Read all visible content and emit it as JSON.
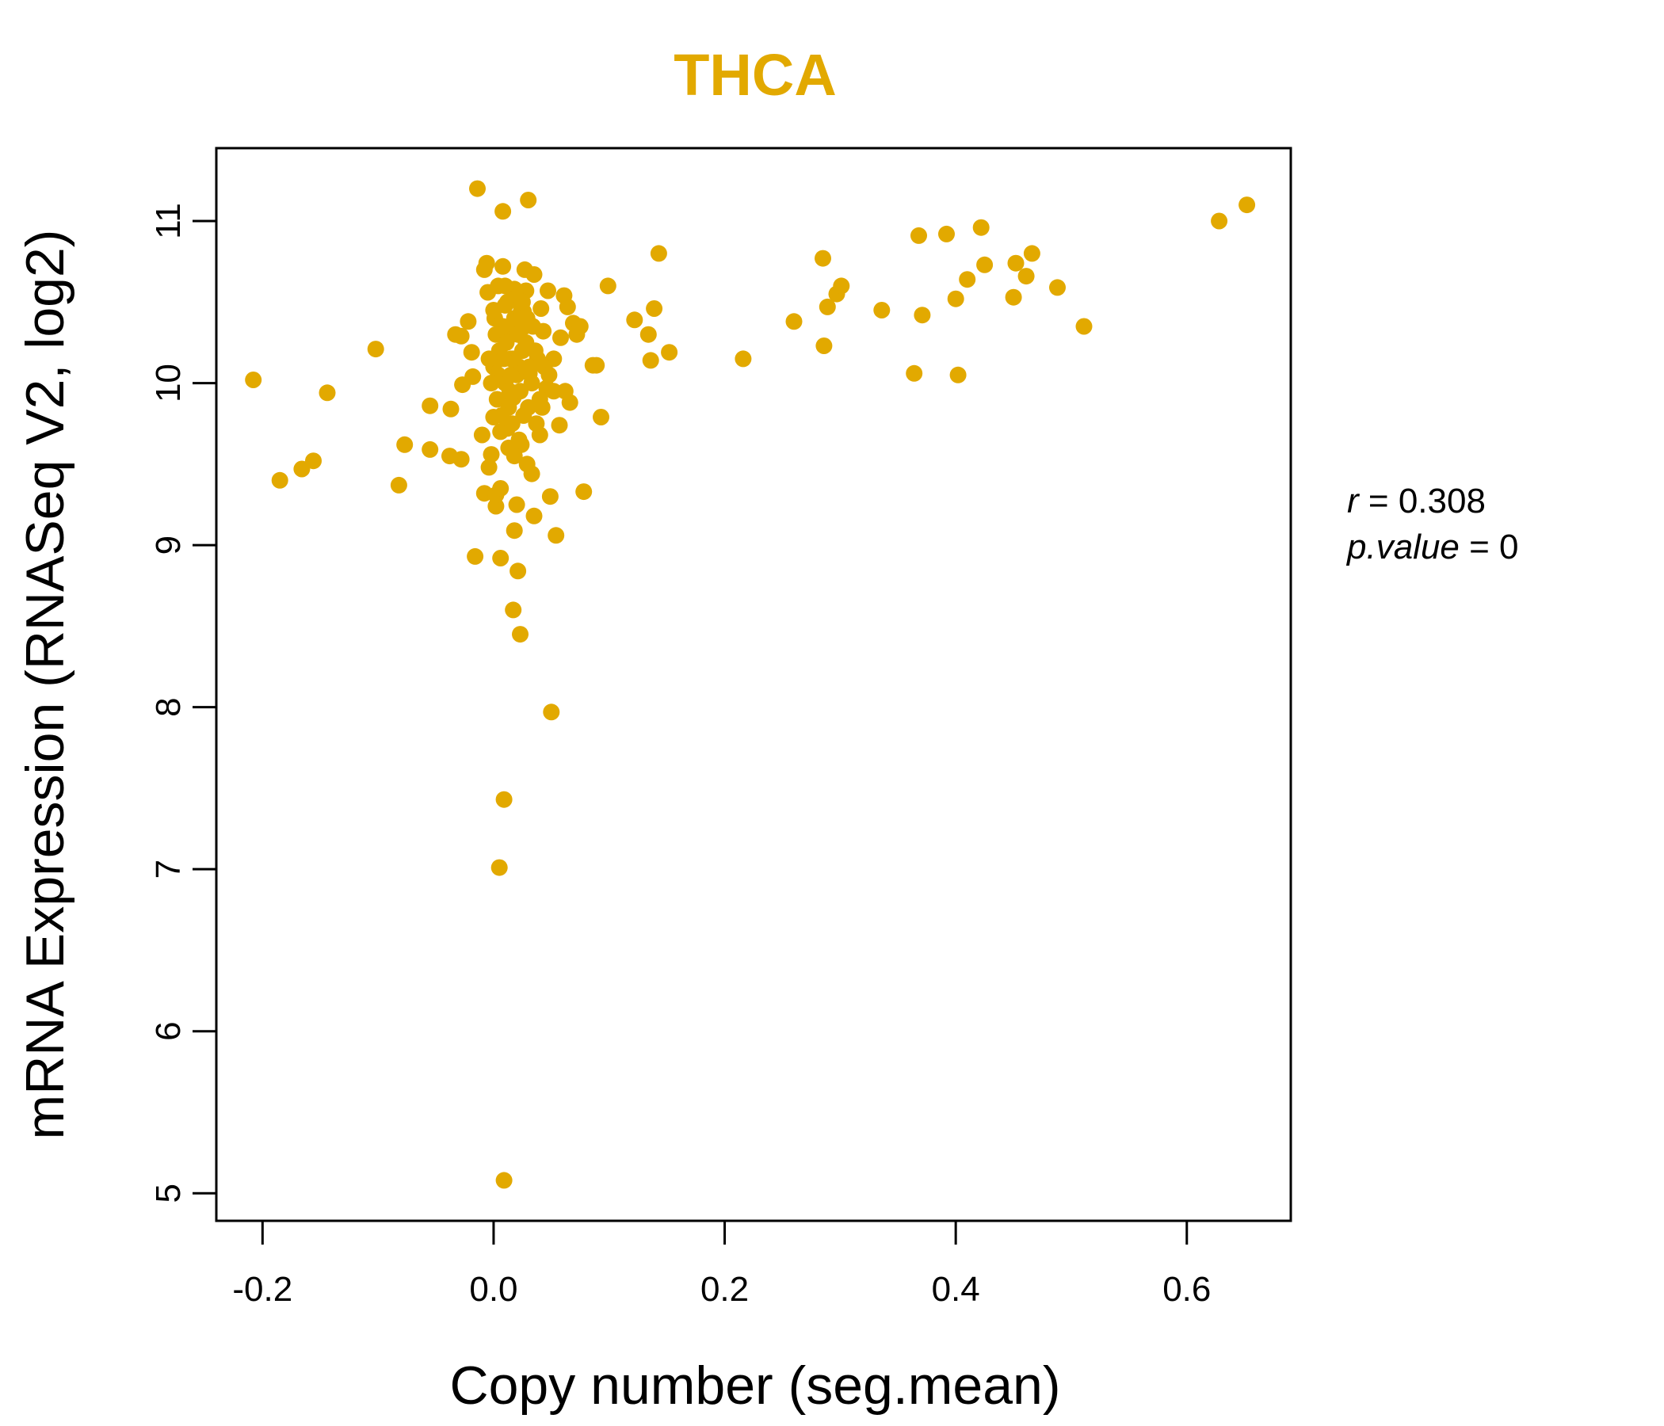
{
  "chart_data": {
    "type": "scatter",
    "title": "THCA",
    "xlabel": "Copy number (seg.mean)",
    "ylabel": "mRNA Expression (RNASeq V2, log2)",
    "xlim": [
      -0.24,
      0.69
    ],
    "ylim": [
      4.83,
      11.45
    ],
    "x_ticks": [
      -0.2,
      0.0,
      0.2,
      0.4,
      0.6
    ],
    "x_tick_labels": [
      "-0.2",
      "0.0",
      "0.2",
      "0.4",
      "0.6"
    ],
    "y_ticks": [
      5,
      6,
      7,
      8,
      9,
      10,
      11
    ],
    "y_tick_labels": [
      "5",
      "6",
      "7",
      "8",
      "9",
      "10",
      "11"
    ],
    "stats": {
      "r_label": "r",
      "r_value": "0.308",
      "p_label": "p.value",
      "p_value": "0"
    },
    "series": [
      {
        "name": "samples",
        "points": [
          [
            -0.208,
            10.02
          ],
          [
            -0.185,
            9.4
          ],
          [
            -0.166,
            9.47
          ],
          [
            -0.156,
            9.52
          ],
          [
            -0.144,
            9.94
          ],
          [
            -0.102,
            10.21
          ],
          [
            -0.082,
            9.37
          ],
          [
            -0.077,
            9.62
          ],
          [
            -0.055,
            9.86
          ],
          [
            -0.055,
            9.59
          ],
          [
            -0.037,
            9.84
          ],
          [
            -0.038,
            9.55
          ],
          [
            -0.033,
            10.3
          ],
          [
            -0.028,
            10.29
          ],
          [
            -0.028,
            9.53
          ],
          [
            -0.027,
            9.99
          ],
          [
            -0.022,
            10.38
          ],
          [
            -0.019,
            10.19
          ],
          [
            -0.018,
            10.04
          ],
          [
            -0.016,
            8.93
          ],
          [
            -0.014,
            11.2
          ],
          [
            -0.01,
            9.68
          ],
          [
            -0.008,
            9.32
          ],
          [
            -0.008,
            10.7
          ],
          [
            -0.006,
            10.74
          ],
          [
            -0.005,
            10.56
          ],
          [
            -0.004,
            9.48
          ],
          [
            -0.002,
            9.56
          ],
          [
            0.0,
            9.79
          ],
          [
            0.002,
            9.24
          ],
          [
            0.002,
            9.31
          ],
          [
            0.004,
            10.6
          ],
          [
            0.006,
            9.35
          ],
          [
            0.006,
            8.92
          ],
          [
            0.008,
            11.06
          ],
          [
            0.008,
            10.72
          ],
          [
            0.01,
            10.48
          ],
          [
            0.012,
            9.72
          ],
          [
            0.015,
            10.15
          ],
          [
            0.016,
            10.31
          ],
          [
            0.017,
            9.91
          ],
          [
            0.018,
            9.09
          ],
          [
            0.018,
            10.58
          ],
          [
            0.02,
            9.25
          ],
          [
            0.021,
            8.84
          ],
          [
            0.023,
            8.45
          ],
          [
            0.024,
            9.62
          ],
          [
            0.026,
            10.44
          ],
          [
            0.027,
            10.7
          ],
          [
            0.028,
            10.57
          ],
          [
            0.029,
            9.5
          ],
          [
            0.03,
            11.13
          ],
          [
            0.031,
            10.06
          ],
          [
            0.033,
            9.44
          ],
          [
            0.035,
            10.67
          ],
          [
            0.035,
            9.18
          ],
          [
            0.038,
            10.15
          ],
          [
            0.04,
            9.68
          ],
          [
            0.041,
            10.46
          ],
          [
            0.043,
            10.32
          ],
          [
            0.046,
            9.97
          ],
          [
            0.047,
            10.57
          ],
          [
            0.049,
            9.3
          ],
          [
            0.05,
            7.97
          ],
          [
            0.052,
            10.15
          ],
          [
            0.054,
            9.06
          ],
          [
            0.057,
            9.74
          ],
          [
            0.058,
            10.28
          ],
          [
            0.061,
            10.54
          ],
          [
            0.062,
            9.95
          ],
          [
            0.064,
            10.47
          ],
          [
            0.066,
            9.88
          ],
          [
            0.069,
            10.37
          ],
          [
            0.072,
            10.3
          ],
          [
            0.075,
            10.35
          ],
          [
            0.078,
            9.33
          ],
          [
            0.086,
            10.11
          ],
          [
            0.089,
            10.11
          ],
          [
            0.093,
            9.79
          ],
          [
            0.099,
            10.6
          ],
          [
            0.122,
            10.39
          ],
          [
            0.134,
            10.3
          ],
          [
            0.136,
            10.14
          ],
          [
            0.139,
            10.46
          ],
          [
            0.143,
            10.8
          ],
          [
            0.152,
            10.19
          ],
          [
            0.216,
            10.15
          ],
          [
            0.26,
            10.38
          ],
          [
            0.285,
            10.77
          ],
          [
            0.286,
            10.23
          ],
          [
            0.289,
            10.47
          ],
          [
            0.297,
            10.55
          ],
          [
            0.301,
            10.6
          ],
          [
            0.336,
            10.45
          ],
          [
            0.364,
            10.06
          ],
          [
            0.368,
            10.91
          ],
          [
            0.371,
            10.42
          ],
          [
            0.392,
            10.92
          ],
          [
            0.4,
            10.52
          ],
          [
            0.402,
            10.05
          ],
          [
            0.41,
            10.64
          ],
          [
            0.422,
            10.96
          ],
          [
            0.425,
            10.73
          ],
          [
            0.45,
            10.53
          ],
          [
            0.452,
            10.74
          ],
          [
            0.461,
            10.66
          ],
          [
            0.466,
            10.8
          ],
          [
            0.488,
            10.59
          ],
          [
            0.511,
            10.35
          ],
          [
            0.628,
            11.0
          ],
          [
            0.652,
            11.1
          ],
          [
            0.009,
            7.43
          ],
          [
            0.005,
            7.01
          ],
          [
            0.009,
            5.08
          ],
          [
            0.017,
            8.6
          ],
          [
            0.0,
            10.1
          ],
          [
            0.005,
            10.2
          ],
          [
            0.01,
            10.0
          ],
          [
            0.015,
            10.3
          ],
          [
            0.02,
            10.05
          ],
          [
            0.025,
            10.2
          ],
          [
            0.003,
            9.9
          ],
          [
            0.008,
            10.35
          ],
          [
            0.013,
            9.85
          ],
          [
            0.018,
            10.4
          ],
          [
            0.023,
            9.95
          ],
          [
            0.028,
            10.25
          ],
          [
            0.033,
            10.0
          ],
          [
            0.002,
            10.3
          ],
          [
            0.012,
            10.5
          ],
          [
            0.022,
            10.1
          ],
          [
            0.03,
            9.85
          ],
          [
            0.007,
            9.8
          ],
          [
            0.017,
            10.15
          ],
          [
            0.027,
            10.35
          ],
          [
            0.004,
            10.05
          ],
          [
            0.014,
            9.95
          ],
          [
            0.024,
            10.45
          ],
          [
            0.036,
            10.2
          ],
          [
            0.04,
            9.9
          ],
          [
            0.011,
            10.25
          ],
          [
            0.021,
            10.3
          ],
          [
            0.031,
            10.1
          ],
          [
            0.006,
            9.7
          ],
          [
            0.016,
            9.75
          ],
          [
            0.026,
            9.8
          ],
          [
            0.001,
            10.4
          ],
          [
            0.019,
            10.55
          ],
          [
            0.029,
            10.4
          ],
          [
            0.009,
            10.15
          ],
          [
            0.034,
            10.35
          ],
          [
            0.044,
            10.1
          ],
          [
            0.048,
            10.05
          ],
          [
            0.052,
            9.95
          ],
          [
            -0.004,
            10.15
          ],
          [
            -0.002,
            10.0
          ],
          [
            0.0,
            10.45
          ],
          [
            0.013,
            9.6
          ],
          [
            0.018,
            9.55
          ],
          [
            0.022,
            9.65
          ],
          [
            0.01,
            10.6
          ],
          [
            0.025,
            10.5
          ],
          [
            0.015,
            10.05
          ],
          [
            0.037,
            9.75
          ],
          [
            0.042,
            9.85
          ]
        ]
      }
    ],
    "colors": {
      "point": "#E2A900",
      "title": "#E2A900",
      "axis": "#000000"
    }
  }
}
